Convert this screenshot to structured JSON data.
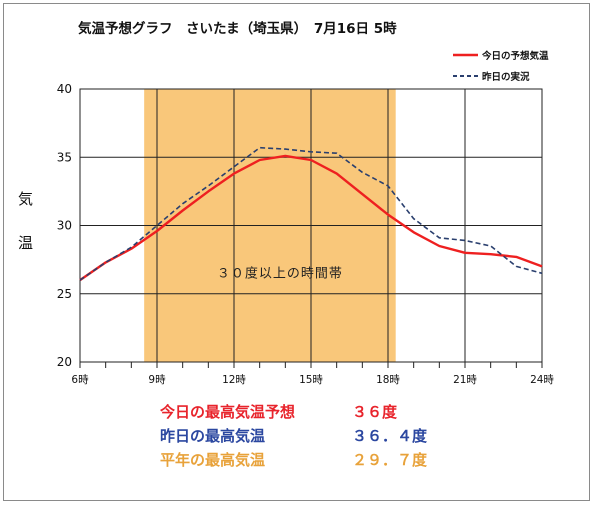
{
  "chart_data": {
    "type": "line",
    "title": "気温予想グラフ　さいたま（埼玉県）　7月16日 5時",
    "ylabel": "気温",
    "ylim": [
      20,
      40
    ],
    "yticks": [
      20,
      25,
      30,
      35,
      40
    ],
    "xlim": [
      6,
      24
    ],
    "x_tick_labels": [
      "6時",
      "9時",
      "12時",
      "15時",
      "18時",
      "21時",
      "24時"
    ],
    "legend_position": "top-right",
    "series": [
      {
        "name": "今日の予想気温",
        "color": "#ee2020",
        "style": "solid",
        "x": [
          6,
          7,
          8,
          9,
          10,
          11,
          12,
          13,
          14,
          15,
          16,
          17,
          18,
          19,
          20,
          21,
          22,
          23,
          24
        ],
        "values": [
          26.0,
          27.3,
          28.3,
          29.6,
          31.1,
          32.5,
          33.8,
          34.8,
          35.1,
          34.8,
          33.8,
          32.3,
          30.8,
          29.5,
          28.5,
          28.0,
          27.9,
          27.7,
          27.0
        ]
      },
      {
        "name": "昨日の実況",
        "color": "#2a3f6e",
        "style": "dashed",
        "x": [
          6,
          7,
          8,
          9,
          10,
          11,
          12,
          13,
          14,
          15,
          16,
          17,
          18,
          19,
          20,
          21,
          22,
          23,
          24
        ],
        "values": [
          26.0,
          27.3,
          28.4,
          30.0,
          31.6,
          32.9,
          34.3,
          35.7,
          35.6,
          35.4,
          35.3,
          33.9,
          32.9,
          30.5,
          29.1,
          28.9,
          28.5,
          27.0,
          26.5
        ]
      }
    ],
    "highlight_band": {
      "x_start": 8.5,
      "x_end": 18.3,
      "color": "#f9c77a",
      "label": "３０度以上の時間帯"
    }
  },
  "summary": [
    {
      "label": "今日の最高気温予想",
      "value": "３６度",
      "color": "#e8242c"
    },
    {
      "label": "昨日の最高気温",
      "value": "３６．４度",
      "color": "#2b47a0"
    },
    {
      "label": "平年の最高気温",
      "value": "２９．７度",
      "color": "#e8a23a"
    }
  ]
}
